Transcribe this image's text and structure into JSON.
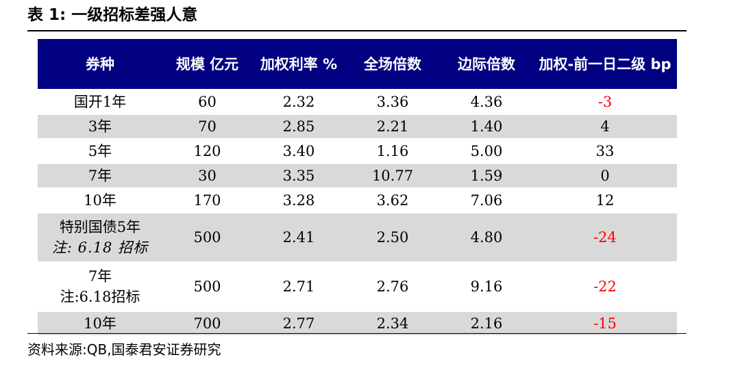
{
  "title": "表 1:  一级招标差强人意",
  "headers": [
    "券种",
    "规模 亿元",
    "加权利率 %",
    "全场倍数",
    "边际倍数",
    "加权-前一日二级 bp"
  ],
  "rows": [
    {
      "name": "国开1年",
      "note": "",
      "scale": "60",
      "rate": "2.32",
      "full_mult": "3.36",
      "marg_mult": "4.36",
      "bp": "-3"
    },
    {
      "name": "3年",
      "note": "",
      "scale": "70",
      "rate": "2.85",
      "full_mult": "2.21",
      "marg_mult": "1.40",
      "bp": "4"
    },
    {
      "name": "5年",
      "note": "",
      "scale": "120",
      "rate": "3.40",
      "full_mult": "1.16",
      "marg_mult": "5.00",
      "bp": "33"
    },
    {
      "name": "7年",
      "note": "",
      "scale": "30",
      "rate": "3.35",
      "full_mult": "10.77",
      "marg_mult": "1.59",
      "bp": "0"
    },
    {
      "name": "10年",
      "note": "",
      "scale": "170",
      "rate": "3.28",
      "full_mult": "3.62",
      "marg_mult": "7.06",
      "bp": "12"
    },
    {
      "name": "特别国债5年",
      "note": "注: 6.18 招标",
      "scale": "500",
      "rate": "2.41",
      "full_mult": "2.50",
      "marg_mult": "4.80",
      "bp": "-24"
    },
    {
      "name": "7年",
      "note": "注:6.18招标",
      "scale": "500",
      "rate": "2.71",
      "full_mult": "2.76",
      "marg_mult": "9.16",
      "bp": "-22"
    },
    {
      "name": "10年",
      "note": "",
      "scale": "700",
      "rate": "2.77",
      "full_mult": "2.34",
      "marg_mult": "2.16",
      "bp": "-15"
    }
  ],
  "negative_color": "#ff0000",
  "header_bg": "#000080",
  "shade_bg": "#d9d9d9",
  "source": "资料来源:QB,国泰君安证券研究"
}
